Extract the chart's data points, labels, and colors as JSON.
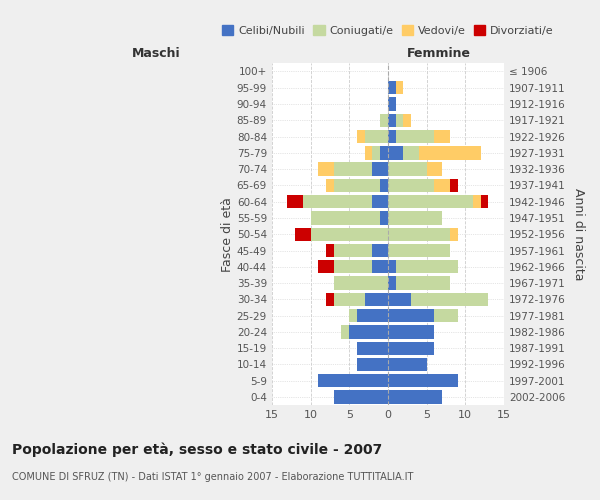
{
  "age_groups": [
    "0-4",
    "5-9",
    "10-14",
    "15-19",
    "20-24",
    "25-29",
    "30-34",
    "35-39",
    "40-44",
    "45-49",
    "50-54",
    "55-59",
    "60-64",
    "65-69",
    "70-74",
    "75-79",
    "80-84",
    "85-89",
    "90-94",
    "95-99",
    "100+"
  ],
  "birth_years": [
    "2002-2006",
    "1997-2001",
    "1992-1996",
    "1987-1991",
    "1982-1986",
    "1977-1981",
    "1972-1976",
    "1967-1971",
    "1962-1966",
    "1957-1961",
    "1952-1956",
    "1947-1951",
    "1942-1946",
    "1937-1941",
    "1932-1936",
    "1927-1931",
    "1922-1926",
    "1917-1921",
    "1912-1916",
    "1907-1911",
    "≤ 1906"
  ],
  "male_celibi": [
    7,
    9,
    4,
    4,
    5,
    4,
    3,
    0,
    2,
    2,
    0,
    1,
    2,
    1,
    2,
    1,
    0,
    0,
    0,
    0,
    0
  ],
  "male_coniugati": [
    0,
    0,
    0,
    0,
    1,
    1,
    4,
    7,
    5,
    5,
    10,
    9,
    9,
    6,
    5,
    1,
    3,
    1,
    0,
    0,
    0
  ],
  "male_vedovi": [
    0,
    0,
    0,
    0,
    0,
    0,
    0,
    0,
    0,
    0,
    0,
    0,
    0,
    1,
    2,
    1,
    1,
    0,
    0,
    0,
    0
  ],
  "male_divorziati": [
    0,
    0,
    0,
    0,
    0,
    0,
    1,
    0,
    2,
    1,
    2,
    0,
    2,
    0,
    0,
    0,
    0,
    0,
    0,
    0,
    0
  ],
  "female_celibi": [
    7,
    9,
    5,
    6,
    6,
    6,
    3,
    1,
    1,
    0,
    0,
    0,
    0,
    0,
    0,
    2,
    1,
    1,
    1,
    1,
    0
  ],
  "female_coniugati": [
    0,
    0,
    0,
    0,
    0,
    3,
    10,
    7,
    8,
    8,
    8,
    7,
    11,
    6,
    5,
    2,
    5,
    1,
    0,
    0,
    0
  ],
  "female_vedovi": [
    0,
    0,
    0,
    0,
    0,
    0,
    0,
    0,
    0,
    0,
    1,
    0,
    1,
    2,
    2,
    8,
    2,
    1,
    0,
    1,
    0
  ],
  "female_divorziati": [
    0,
    0,
    0,
    0,
    0,
    0,
    0,
    0,
    0,
    0,
    0,
    0,
    1,
    1,
    0,
    0,
    0,
    0,
    0,
    0,
    0
  ],
  "colors": {
    "celibi": "#4472C4",
    "coniugati": "#C5D9A0",
    "vedovi": "#FFCC66",
    "divorziati": "#CC0000"
  },
  "xlim": 15,
  "title": "Popolazione per età, sesso e stato civile - 2007",
  "subtitle": "COMUNE DI SFRUZ (TN) - Dati ISTAT 1° gennaio 2007 - Elaborazione TUTTITALIA.IT",
  "ylabel_left": "Fasce di età",
  "ylabel_right": "Anni di nascita",
  "xlabel_left": "Maschi",
  "xlabel_right": "Femmine",
  "bg_color": "#EFEFEF",
  "plot_bg_color": "#FFFFFF"
}
